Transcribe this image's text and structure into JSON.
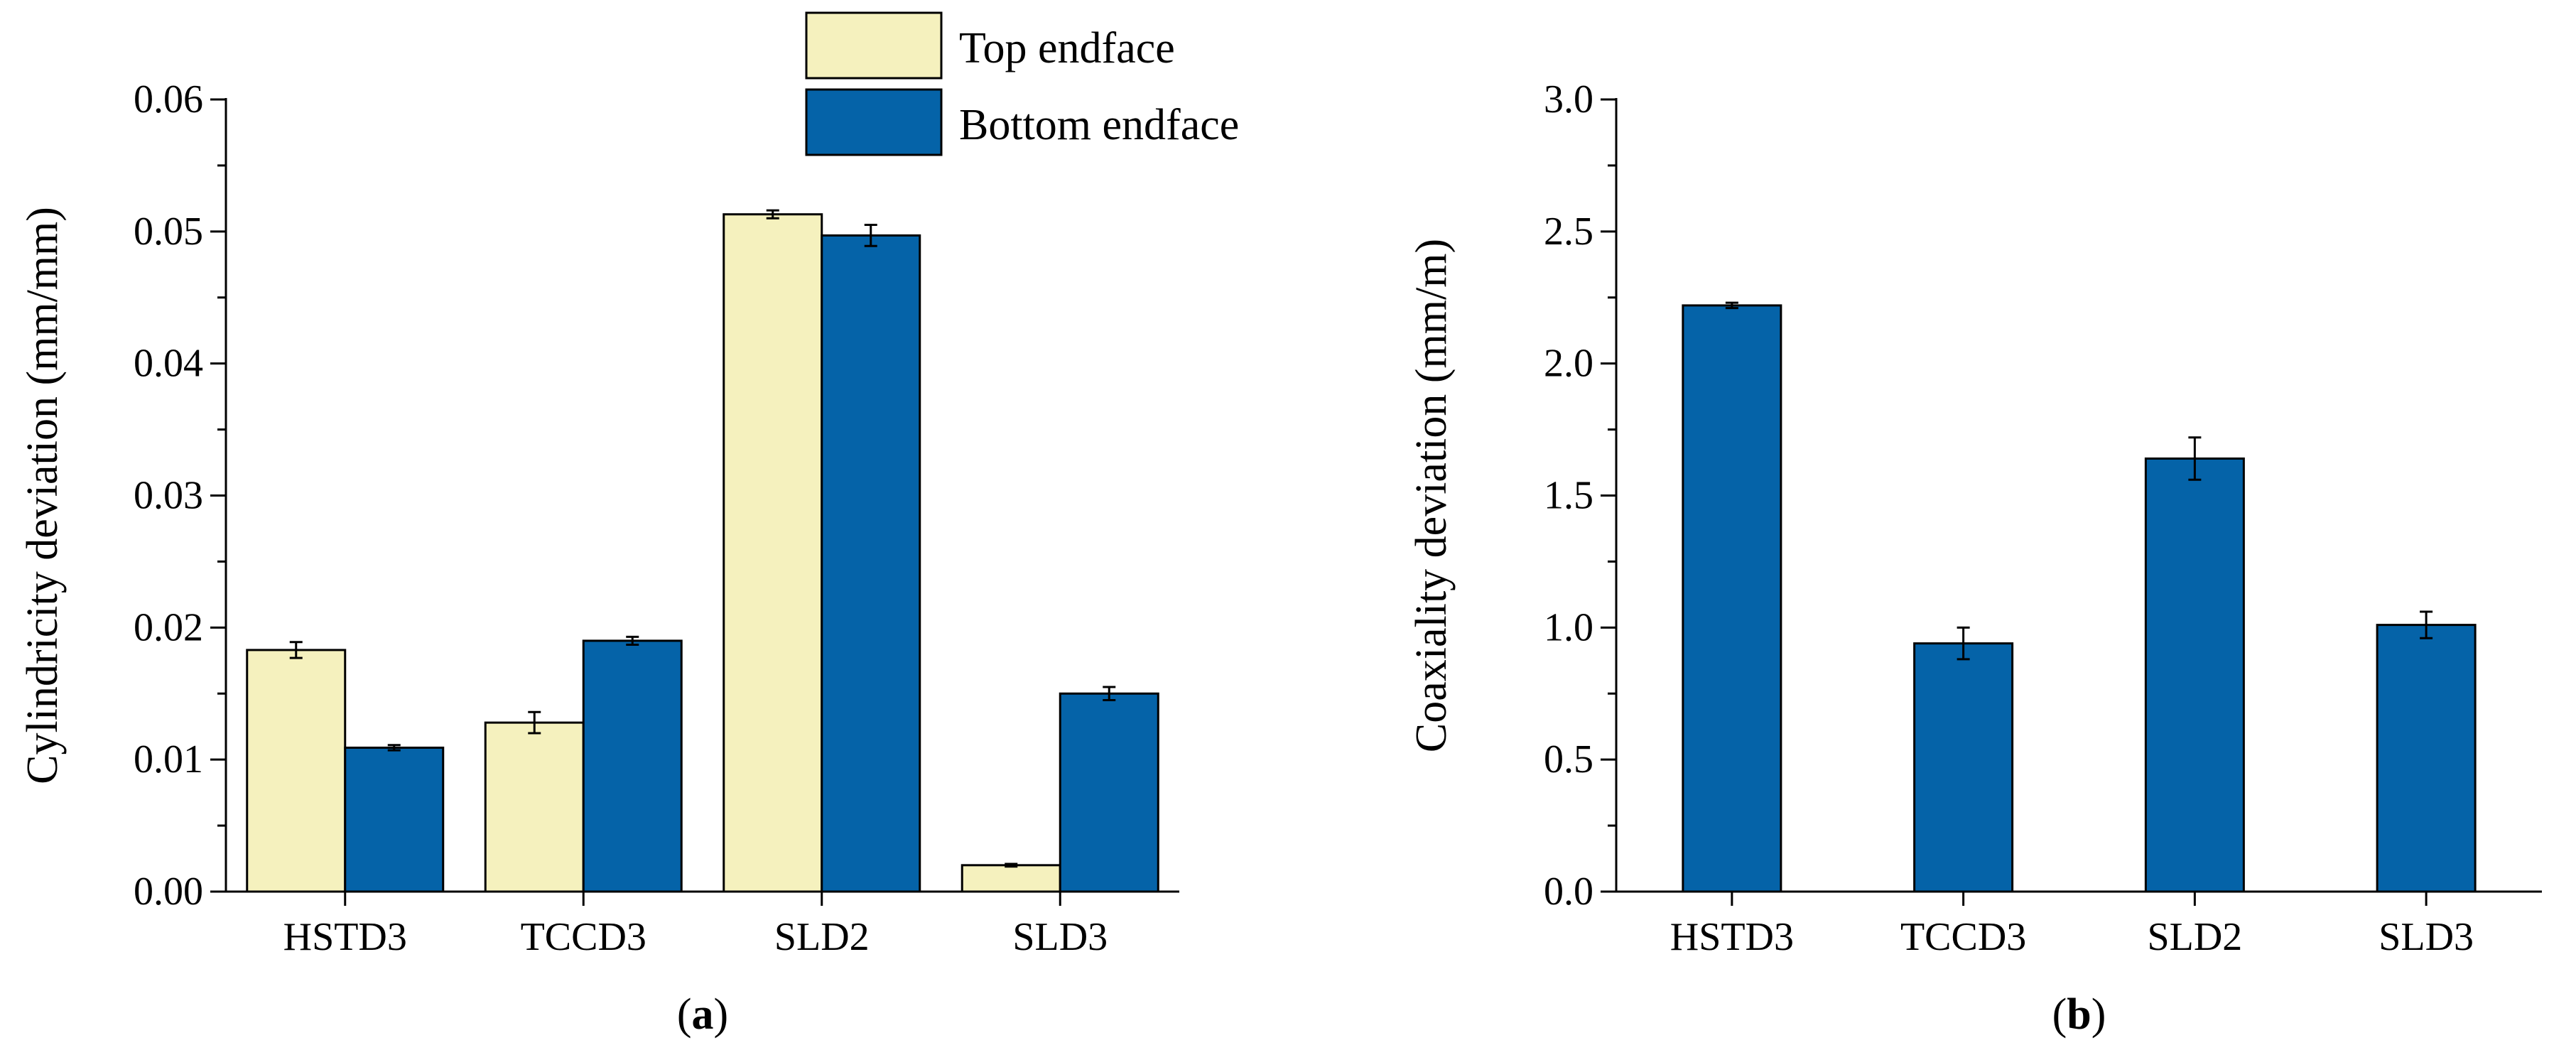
{
  "colors": {
    "top": "#F5F1BE",
    "bottom": "#0563A8",
    "axis": "#000000"
  },
  "chart_data": [
    {
      "id": "a",
      "type": "bar",
      "panel_label": "a",
      "categories": [
        "HSTD3",
        "TCCD3",
        "SLD2",
        "SLD3"
      ],
      "series": [
        {
          "name": "Top endface",
          "values": [
            0.0183,
            0.0128,
            0.0513,
            0.002
          ],
          "errors": [
            0.0006,
            0.0008,
            0.0003,
            0.0001
          ]
        },
        {
          "name": "Bottom endface",
          "values": [
            0.0109,
            0.019,
            0.0497,
            0.015
          ],
          "errors": [
            0.0002,
            0.0003,
            0.0008,
            0.0005
          ]
        }
      ],
      "ylabel": "Cylindricity deviation (mm/mm)",
      "xlabel": "",
      "ylim": [
        0,
        0.06
      ],
      "yticks": [
        "0.00",
        "0.01",
        "0.02",
        "0.03",
        "0.04",
        "0.05",
        "0.06"
      ],
      "legend_position": "top-center"
    },
    {
      "id": "b",
      "type": "bar",
      "panel_label": "b",
      "categories": [
        "HSTD3",
        "TCCD3",
        "SLD2",
        "SLD3"
      ],
      "series": [
        {
          "name": "Coaxiality deviation",
          "values": [
            2.22,
            0.94,
            1.64,
            1.01
          ],
          "errors": [
            0.01,
            0.06,
            0.08,
            0.05
          ]
        }
      ],
      "ylabel": "Coaxiality deviation (mm/m)",
      "xlabel": "",
      "ylim": [
        0,
        3.0
      ],
      "yticks": [
        "0.0",
        "0.5",
        "1.0",
        "1.5",
        "2.0",
        "2.5",
        "3.0"
      ]
    }
  ]
}
